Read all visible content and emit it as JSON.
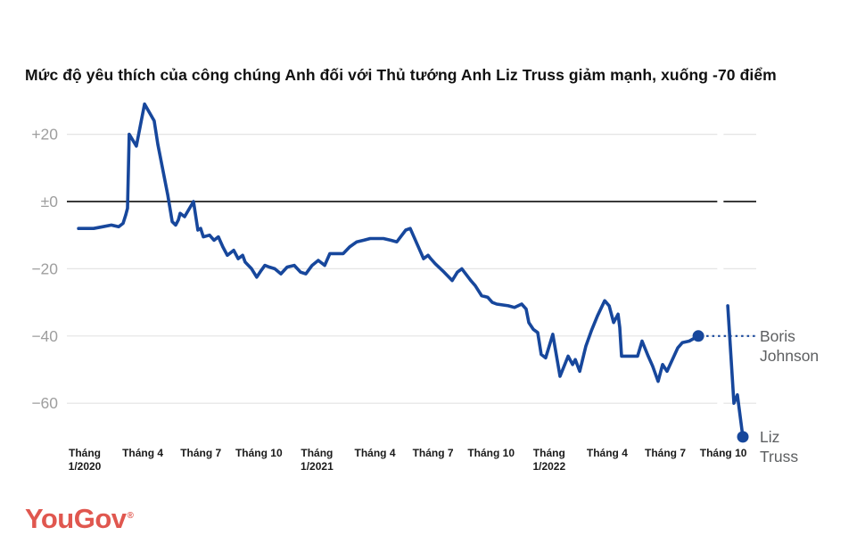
{
  "title": "Mức độ yêu thích của công chúng Anh đối với Thủ tướng Anh Liz Truss giảm mạnh, xuống -70 điểm",
  "logo": {
    "text": "YouGov",
    "mark": "®",
    "color": "#e0574f"
  },
  "chart_data": {
    "type": "line",
    "title": "Mức độ yêu thích của công chúng Anh đối với Thủ tướng Anh Liz Truss giảm mạnh, xuống -70 điểm",
    "x_unit": "months_since_jan_2020",
    "xlim": [
      -1.2,
      35.2
    ],
    "ylim": [
      -75,
      32
    ],
    "grid": "horizontal",
    "y_ticks": [
      {
        "label": "+20",
        "value": 20
      },
      {
        "label": "±0",
        "value": 0
      },
      {
        "label": "−20",
        "value": -20
      },
      {
        "label": "−40",
        "value": -40
      },
      {
        "label": "−60",
        "value": -60
      }
    ],
    "x_ticks": [
      {
        "label": "Tháng\n1/2020",
        "month": 0
      },
      {
        "label": "Tháng 4",
        "month": 3
      },
      {
        "label": "Tháng 7",
        "month": 6
      },
      {
        "label": "Tháng 10",
        "month": 9
      },
      {
        "label": "Tháng\n1/2021",
        "month": 12
      },
      {
        "label": "Tháng 4",
        "month": 15
      },
      {
        "label": "Tháng 7",
        "month": 18
      },
      {
        "label": "Tháng 10",
        "month": 21
      },
      {
        "label": "Tháng\n1/2022",
        "month": 24
      },
      {
        "label": "Tháng 4",
        "month": 27
      },
      {
        "label": "Tháng 7",
        "month": 30
      },
      {
        "label": "Tháng 10",
        "month": 33
      }
    ],
    "divider_month": 32.85,
    "series": [
      {
        "name": "Boris Johnson",
        "end_dot": true,
        "points": [
          [
            -0.32,
            -8
          ],
          [
            0.46,
            -8
          ],
          [
            0.92,
            -7.5
          ],
          [
            1.38,
            -7
          ],
          [
            1.75,
            -7.5
          ],
          [
            1.98,
            -6.5
          ],
          [
            2.12,
            -4
          ],
          [
            2.21,
            -2
          ],
          [
            2.3,
            20
          ],
          [
            2.67,
            16.5
          ],
          [
            3.09,
            29
          ],
          [
            3.59,
            24
          ],
          [
            3.78,
            17
          ],
          [
            4.29,
            2
          ],
          [
            4.52,
            -6
          ],
          [
            4.7,
            -7
          ],
          [
            4.84,
            -5.5
          ],
          [
            4.93,
            -3.5
          ],
          [
            5.16,
            -4.5
          ],
          [
            5.62,
            0
          ],
          [
            5.85,
            -8.5
          ],
          [
            5.99,
            -8
          ],
          [
            6.13,
            -10.5
          ],
          [
            6.45,
            -10
          ],
          [
            6.68,
            -11.5
          ],
          [
            6.91,
            -10.5
          ],
          [
            7.14,
            -13.5
          ],
          [
            7.37,
            -16
          ],
          [
            7.7,
            -14.5
          ],
          [
            7.93,
            -17
          ],
          [
            8.16,
            -16
          ],
          [
            8.29,
            -18
          ],
          [
            8.62,
            -20
          ],
          [
            8.89,
            -22.5
          ],
          [
            9.12,
            -20.5
          ],
          [
            9.31,
            -19
          ],
          [
            9.54,
            -19.5
          ],
          [
            9.82,
            -20
          ],
          [
            10.14,
            -21.5
          ],
          [
            10.46,
            -19.5
          ],
          [
            10.83,
            -19
          ],
          [
            11.15,
            -21
          ],
          [
            11.43,
            -21.5
          ],
          [
            11.75,
            -19
          ],
          [
            12.07,
            -17.5
          ],
          [
            12.4,
            -19
          ],
          [
            12.67,
            -15.5
          ],
          [
            13.04,
            -15.5
          ],
          [
            13.36,
            -15.5
          ],
          [
            13.69,
            -13.5
          ],
          [
            14.06,
            -12
          ],
          [
            14.42,
            -11.5
          ],
          [
            14.75,
            -11
          ],
          [
            15.07,
            -11
          ],
          [
            15.44,
            -11
          ],
          [
            15.81,
            -11.5
          ],
          [
            16.13,
            -12
          ],
          [
            16.59,
            -8.5
          ],
          [
            16.82,
            -8
          ],
          [
            17.28,
            -14
          ],
          [
            17.51,
            -17
          ],
          [
            17.74,
            -16
          ],
          [
            17.88,
            -17
          ],
          [
            18.11,
            -18.5
          ],
          [
            18.57,
            -21
          ],
          [
            18.99,
            -23.5
          ],
          [
            19.26,
            -21
          ],
          [
            19.49,
            -20
          ],
          [
            19.95,
            -23.5
          ],
          [
            20.18,
            -25
          ],
          [
            20.51,
            -28
          ],
          [
            20.83,
            -28.5
          ],
          [
            21.06,
            -30
          ],
          [
            21.29,
            -30.5
          ],
          [
            21.89,
            -31
          ],
          [
            22.21,
            -31.5
          ],
          [
            22.58,
            -30.5
          ],
          [
            22.81,
            -32
          ],
          [
            22.95,
            -36
          ],
          [
            23.18,
            -38
          ],
          [
            23.41,
            -39
          ],
          [
            23.59,
            -45.5
          ],
          [
            23.82,
            -46.5
          ],
          [
            24.19,
            -39.5
          ],
          [
            24.56,
            -52
          ],
          [
            24.98,
            -46
          ],
          [
            25.21,
            -48.5
          ],
          [
            25.35,
            -47
          ],
          [
            25.58,
            -50.5
          ],
          [
            25.9,
            -43
          ],
          [
            26.18,
            -38.5
          ],
          [
            26.5,
            -34
          ],
          [
            26.87,
            -29.5
          ],
          [
            27.1,
            -31
          ],
          [
            27.33,
            -36
          ],
          [
            27.56,
            -33.5
          ],
          [
            27.65,
            -37.5
          ],
          [
            27.74,
            -46
          ],
          [
            28.57,
            -46
          ],
          [
            28.8,
            -41.5
          ],
          [
            29.12,
            -46
          ],
          [
            29.35,
            -49
          ],
          [
            29.63,
            -53.5
          ],
          [
            29.86,
            -48.5
          ],
          [
            30.09,
            -50.5
          ],
          [
            30.65,
            -43.5
          ],
          [
            30.88,
            -42
          ],
          [
            31.24,
            -41.5
          ],
          [
            31.71,
            -40
          ]
        ]
      },
      {
        "name": "Liz Truss",
        "end_dot": true,
        "points": [
          [
            33.23,
            -31
          ],
          [
            33.55,
            -60
          ],
          [
            33.73,
            -57.5
          ],
          [
            34.01,
            -70
          ]
        ]
      }
    ],
    "annotations": [
      {
        "lines": [
          "Boris",
          "Johnson"
        ],
        "month": 31.71,
        "value": -40,
        "leader_dotted": true
      },
      {
        "lines": [
          "Liz",
          "Truss"
        ],
        "month": 34.01,
        "value": -70,
        "leader_dotted": false
      }
    ],
    "colors": {
      "line": "#17479c",
      "grid": "#e4e4e4",
      "zero_line": "#3a3a3a",
      "axis_label": "#9e9e9e",
      "tick_label": "#1a1a1a",
      "annotation": "#5d5f61"
    }
  }
}
